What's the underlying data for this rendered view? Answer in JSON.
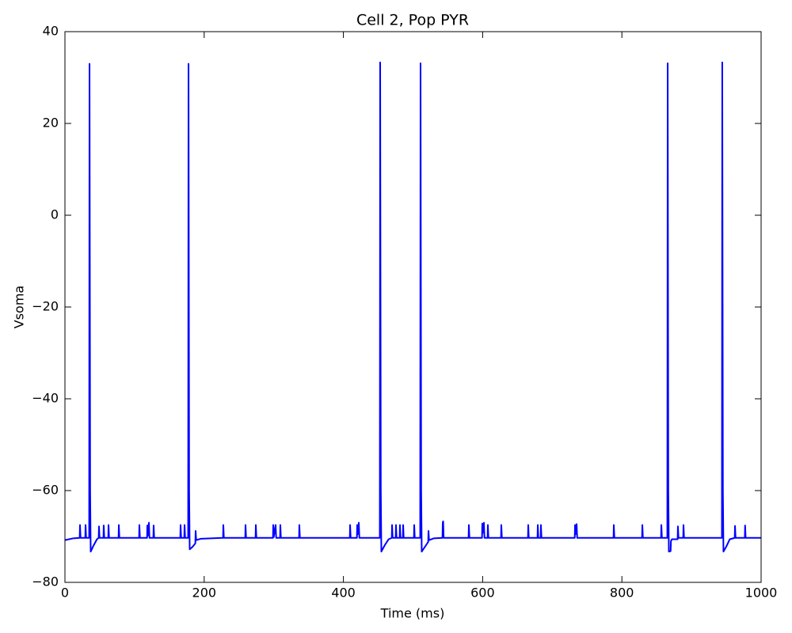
{
  "chart_data": {
    "type": "line",
    "title": "Cell 2, Pop PYR",
    "xlabel": "Time (ms)",
    "ylabel": "Vsoma",
    "color": "#0000ff",
    "xlim": [
      0,
      1000
    ],
    "ylim": [
      -80,
      40
    ],
    "xticks": [
      0,
      200,
      400,
      600,
      800,
      1000
    ],
    "yticks": [
      {
        "value": -80,
        "label": "−80"
      },
      {
        "value": -60,
        "label": "−60"
      },
      {
        "value": -40,
        "label": "−40"
      },
      {
        "value": -20,
        "label": "−20"
      },
      0,
      20,
      40
    ],
    "grid": false,
    "x": [
      0,
      12,
      21.2,
      21.6,
      22.4,
      29.2,
      29.6,
      30.4,
      34.8,
      35.3,
      36.2,
      37,
      41,
      46,
      48.5,
      48.9,
      49.7,
      55.3,
      55.7,
      56.5,
      62.2,
      62.6,
      63.4,
      77,
      77.4,
      78.2,
      106.5,
      106.9,
      107.7,
      118,
      118.3,
      119,
      120.6,
      121.4,
      127,
      127.4,
      128.2,
      165.7,
      166.1,
      166.9,
      171.4,
      171.8,
      172.6,
      177,
      177.5,
      178.4,
      179.2,
      183,
      187.3,
      187.7,
      188.5,
      195,
      227.1,
      227.5,
      228.3,
      259,
      259.4,
      260.2,
      273.8,
      274.2,
      275,
      298.8,
      299.2,
      300,
      302.6,
      303.4,
      309,
      309.4,
      310.2,
      336.3,
      336.7,
      337.5,
      409.2,
      409.6,
      410.4,
      419.4,
      419.8,
      420.6,
      422.1,
      422.9,
      452.3,
      452.8,
      453.7,
      454.5,
      459,
      465,
      469.5,
      469.9,
      470.7,
      475.1,
      475.5,
      476.3,
      480.8,
      481.2,
      482,
      485.4,
      485.8,
      486.6,
      501.3,
      501.7,
      502.5,
      510.3,
      510.8,
      511.7,
      512.5,
      516,
      521.8,
      522.2,
      523,
      530,
      542.3,
      542.7,
      543.3,
      544,
      579.8,
      580.2,
      581,
      599.1,
      599.5,
      600.3,
      601.8,
      602.6,
      607.1,
      607.5,
      608.3,
      626.4,
      626.8,
      627.6,
      665.1,
      665.5,
      666.3,
      678.8,
      679.2,
      680,
      683.3,
      683.7,
      684.5,
      732.3,
      732.7,
      733.5,
      735,
      735.8,
      788,
      788.4,
      789.2,
      829,
      829.4,
      830.2,
      856.3,
      856.7,
      857.5,
      865.3,
      865.8,
      866.7,
      867.5,
      870,
      870.5,
      872,
      880.1,
      880.5,
      881.3,
      888.1,
      888.5,
      889.3,
      943.7,
      944.2,
      945.1,
      945.9,
      950,
      955,
      962.1,
      962.5,
      963.3,
      976.6,
      977,
      977.8,
      1000
    ],
    "values": [
      -70.8,
      -70.4,
      -70.3,
      -67.5,
      -70.3,
      -70.3,
      -67.5,
      -70.3,
      -70.3,
      33,
      -60,
      -73.3,
      -72,
      -70.6,
      -70.3,
      -67.8,
      -70.3,
      -70.3,
      -67.6,
      -70.3,
      -70.3,
      -67.5,
      -70.3,
      -70.3,
      -67.5,
      -70.3,
      -70.3,
      -67.5,
      -70.3,
      -70.3,
      -67.6,
      -69.8,
      -67,
      -70.3,
      -70.3,
      -67.6,
      -70.3,
      -70.3,
      -67.5,
      -70.3,
      -70.3,
      -67.5,
      -70.3,
      -70.3,
      33,
      -60,
      -72.8,
      -72.3,
      -71.5,
      -68.8,
      -70.8,
      -70.5,
      -70.3,
      -67.5,
      -70.3,
      -70.3,
      -67.5,
      -70.3,
      -70.3,
      -67.5,
      -70.3,
      -70.3,
      -67.5,
      -70.1,
      -67.5,
      -70.3,
      -70.3,
      -67.5,
      -70.3,
      -70.3,
      -67.5,
      -70.3,
      -70.3,
      -67.5,
      -70.3,
      -70.3,
      -67.5,
      -69.5,
      -67,
      -70.3,
      -70.3,
      33.3,
      -60,
      -73.3,
      -72,
      -70.6,
      -70.3,
      -67.5,
      -70.3,
      -70.3,
      -67.5,
      -70.3,
      -70.3,
      -67.5,
      -70.3,
      -70.3,
      -67.5,
      -70.3,
      -70.3,
      -67.5,
      -70.3,
      -70.3,
      33.1,
      -60,
      -73.3,
      -72.5,
      -71.2,
      -68.8,
      -70.8,
      -70.4,
      -70.3,
      -67,
      -66.7,
      -70.3,
      -70.3,
      -67.5,
      -70.3,
      -70.3,
      -67.2,
      -69.2,
      -67,
      -70.3,
      -70.3,
      -67.5,
      -70.3,
      -70.3,
      -67.5,
      -70.3,
      -70.3,
      -67.5,
      -70.3,
      -70.3,
      -67.5,
      -70.3,
      -70.3,
      -67.5,
      -70.3,
      -70.3,
      -67.5,
      -69.5,
      -67.3,
      -70.3,
      -70.3,
      -67.5,
      -70.3,
      -70.3,
      -67.5,
      -70.3,
      -70.3,
      -67.5,
      -70.3,
      -70.3,
      33.1,
      -60,
      -73.3,
      -73.2,
      -71,
      -70.6,
      -70.6,
      -67.8,
      -70.3,
      -70.3,
      -67.5,
      -70.3,
      -70.3,
      33.3,
      -60,
      -73.3,
      -72.2,
      -70.6,
      -70.3,
      -67.7,
      -70.3,
      -70.3,
      -67.6,
      -70.3,
      -70.3
    ]
  }
}
